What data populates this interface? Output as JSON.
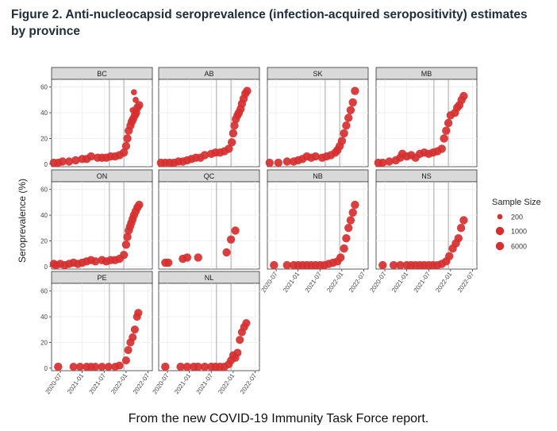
{
  "figure_title": "Figure 2. Anti-nucleocapsid seroprevalence (infection-acquired seropositivity) estimates by province",
  "caption": "From the new COVID-19 Immunity Task Force report.",
  "chart_data": {
    "type": "scatter",
    "ylabel": "Seroprevalence (%)",
    "xlabel": "",
    "ylim": [
      -2,
      66
    ],
    "yticks": [
      0,
      20,
      40,
      60
    ],
    "xlim": [
      2020.3,
      2022.6
    ],
    "xticks": [
      {
        "value": 2020.5,
        "label": "2020-07"
      },
      {
        "value": 2021.0,
        "label": "2021-01"
      },
      {
        "value": 2021.5,
        "label": "2021-07"
      },
      {
        "value": 2022.0,
        "label": "2022-01"
      },
      {
        "value": 2022.5,
        "label": "2022-07"
      }
    ],
    "vlines": [
      2021.62,
      2021.95
    ],
    "point_color": "#d62f2f",
    "grid": true,
    "legend": {
      "title": "Sample Size",
      "position": "right",
      "entries": [
        {
          "label": "200",
          "size": 200
        },
        {
          "label": "1000",
          "size": 1000
        },
        {
          "label": "6000",
          "size": 6000
        }
      ]
    },
    "panels": [
      {
        "name": "BC",
        "points": [
          [
            2020.35,
            1,
            3000
          ],
          [
            2020.45,
            1,
            6000
          ],
          [
            2020.55,
            2,
            2000
          ],
          [
            2020.7,
            2,
            1500
          ],
          [
            2020.85,
            3,
            1500
          ],
          [
            2021.0,
            4,
            1500
          ],
          [
            2021.1,
            4,
            1500
          ],
          [
            2021.2,
            6,
            2000
          ],
          [
            2021.35,
            5,
            1500
          ],
          [
            2021.45,
            5,
            1500
          ],
          [
            2021.55,
            5,
            1500
          ],
          [
            2021.65,
            6,
            1500
          ],
          [
            2021.75,
            6,
            1500
          ],
          [
            2021.85,
            7,
            1500
          ],
          [
            2021.95,
            9,
            2000
          ],
          [
            2022.0,
            14,
            1500
          ],
          [
            2022.03,
            20,
            1500
          ],
          [
            2022.06,
            26,
            1500
          ],
          [
            2022.1,
            30,
            1500
          ],
          [
            2022.13,
            33,
            1500
          ],
          [
            2022.16,
            35,
            1500
          ],
          [
            2022.2,
            38,
            1500
          ],
          [
            2022.23,
            40,
            1500
          ],
          [
            2022.26,
            44,
            1500
          ],
          [
            2022.3,
            46,
            1500
          ],
          [
            2022.18,
            56,
            300
          ],
          [
            2022.22,
            50,
            300
          ],
          [
            2022.15,
            42,
            300
          ]
        ]
      },
      {
        "name": "AB",
        "points": [
          [
            2020.35,
            1,
            6000
          ],
          [
            2020.45,
            1,
            3000
          ],
          [
            2020.55,
            1,
            2500
          ],
          [
            2020.65,
            1,
            2500
          ],
          [
            2020.75,
            2,
            2500
          ],
          [
            2020.85,
            2,
            2500
          ],
          [
            2020.95,
            3,
            2000
          ],
          [
            2021.05,
            4,
            2000
          ],
          [
            2021.15,
            5,
            2000
          ],
          [
            2021.25,
            5,
            2000
          ],
          [
            2021.35,
            7,
            2000
          ],
          [
            2021.5,
            8,
            2000
          ],
          [
            2021.6,
            9,
            2000
          ],
          [
            2021.7,
            9,
            2000
          ],
          [
            2021.8,
            10,
            2000
          ],
          [
            2021.9,
            12,
            2000
          ],
          [
            2021.97,
            17,
            2000
          ],
          [
            2022.0,
            24,
            1500
          ],
          [
            2022.03,
            30,
            1500
          ],
          [
            2022.06,
            35,
            1500
          ],
          [
            2022.1,
            38,
            1500
          ],
          [
            2022.13,
            40,
            1500
          ],
          [
            2022.17,
            43,
            1500
          ],
          [
            2022.2,
            47,
            1500
          ],
          [
            2022.24,
            51,
            1500
          ],
          [
            2022.28,
            55,
            1500
          ],
          [
            2022.32,
            57,
            1500
          ]
        ]
      },
      {
        "name": "SK",
        "points": [
          [
            2020.35,
            1,
            700
          ],
          [
            2020.55,
            1,
            700
          ],
          [
            2020.75,
            2,
            900
          ],
          [
            2020.9,
            2,
            700
          ],
          [
            2021.0,
            3,
            900
          ],
          [
            2021.1,
            4,
            900
          ],
          [
            2021.2,
            6,
            1000
          ],
          [
            2021.3,
            5,
            900
          ],
          [
            2021.4,
            6,
            1000
          ],
          [
            2021.55,
            5,
            900
          ],
          [
            2021.65,
            6,
            900
          ],
          [
            2021.75,
            7,
            1000
          ],
          [
            2021.85,
            9,
            900
          ],
          [
            2021.9,
            11,
            900
          ],
          [
            2021.95,
            14,
            900
          ],
          [
            2022.0,
            18,
            900
          ],
          [
            2022.05,
            24,
            900
          ],
          [
            2022.1,
            30,
            900
          ],
          [
            2022.15,
            36,
            900
          ],
          [
            2022.2,
            42,
            900
          ],
          [
            2022.25,
            48,
            900
          ],
          [
            2022.3,
            57,
            700
          ]
        ]
      },
      {
        "name": "MB",
        "points": [
          [
            2020.35,
            1,
            1000
          ],
          [
            2020.45,
            1,
            1000
          ],
          [
            2020.6,
            2,
            1000
          ],
          [
            2020.75,
            3,
            900
          ],
          [
            2020.85,
            5,
            900
          ],
          [
            2020.9,
            8,
            700
          ],
          [
            2021.0,
            6,
            900
          ],
          [
            2021.1,
            7,
            900
          ],
          [
            2021.2,
            5,
            900
          ],
          [
            2021.3,
            8,
            700
          ],
          [
            2021.4,
            9,
            900
          ],
          [
            2021.5,
            8,
            700
          ],
          [
            2021.6,
            9,
            900
          ],
          [
            2021.7,
            10,
            900
          ],
          [
            2021.8,
            12,
            900
          ],
          [
            2021.85,
            20,
            700
          ],
          [
            2021.9,
            26,
            700
          ],
          [
            2021.95,
            32,
            900
          ],
          [
            2022.0,
            38,
            900
          ],
          [
            2022.1,
            40,
            900
          ],
          [
            2022.15,
            44,
            900
          ],
          [
            2022.2,
            46,
            900
          ],
          [
            2022.25,
            50,
            900
          ],
          [
            2022.3,
            53,
            900
          ]
        ]
      },
      {
        "name": "ON",
        "points": [
          [
            2020.35,
            2,
            6000
          ],
          [
            2020.4,
            1,
            3000
          ],
          [
            2020.5,
            2,
            6000
          ],
          [
            2020.6,
            1,
            3000
          ],
          [
            2020.7,
            2,
            2500
          ],
          [
            2020.8,
            3,
            2500
          ],
          [
            2020.9,
            2,
            2500
          ],
          [
            2021.0,
            3,
            2500
          ],
          [
            2021.1,
            4,
            2500
          ],
          [
            2021.2,
            5,
            2500
          ],
          [
            2021.3,
            4,
            2500
          ],
          [
            2021.45,
            5,
            2500
          ],
          [
            2021.55,
            4,
            2500
          ],
          [
            2021.65,
            5,
            2500
          ],
          [
            2021.75,
            5,
            2500
          ],
          [
            2021.85,
            6,
            2500
          ],
          [
            2021.95,
            9,
            2500
          ],
          [
            2022.0,
            17,
            2000
          ],
          [
            2022.03,
            23,
            2000
          ],
          [
            2022.06,
            28,
            2000
          ],
          [
            2022.09,
            31,
            2000
          ],
          [
            2022.12,
            34,
            2000
          ],
          [
            2022.15,
            37,
            2000
          ],
          [
            2022.18,
            40,
            2000
          ],
          [
            2022.22,
            43,
            2000
          ],
          [
            2022.26,
            46,
            2000
          ],
          [
            2022.3,
            48,
            2000
          ]
        ]
      },
      {
        "name": "QC",
        "points": [
          [
            2020.45,
            3,
            3500
          ],
          [
            2020.52,
            3,
            3500
          ],
          [
            2020.85,
            6,
            700
          ],
          [
            2020.95,
            7,
            1000
          ],
          [
            2021.2,
            7,
            1000
          ],
          [
            2021.85,
            11,
            700
          ],
          [
            2021.95,
            21,
            700
          ],
          [
            2022.05,
            28,
            700
          ]
        ]
      },
      {
        "name": "NB",
        "points": [
          [
            2020.45,
            1,
            1000
          ],
          [
            2020.75,
            1,
            900
          ],
          [
            2020.9,
            1,
            800
          ],
          [
            2021.0,
            1,
            800
          ],
          [
            2021.1,
            1,
            800
          ],
          [
            2021.2,
            1,
            800
          ],
          [
            2021.3,
            1,
            800
          ],
          [
            2021.4,
            1,
            800
          ],
          [
            2021.5,
            1,
            800
          ],
          [
            2021.6,
            1,
            800
          ],
          [
            2021.7,
            2,
            800
          ],
          [
            2021.8,
            3,
            800
          ],
          [
            2021.9,
            4,
            800
          ],
          [
            2021.97,
            7,
            800
          ],
          [
            2022.05,
            14,
            800
          ],
          [
            2022.1,
            22,
            800
          ],
          [
            2022.15,
            30,
            800
          ],
          [
            2022.2,
            36,
            800
          ],
          [
            2022.25,
            42,
            800
          ],
          [
            2022.3,
            48,
            700
          ]
        ]
      },
      {
        "name": "NS",
        "points": [
          [
            2020.45,
            1,
            1000
          ],
          [
            2020.7,
            1,
            900
          ],
          [
            2020.85,
            1,
            800
          ],
          [
            2021.0,
            1,
            800
          ],
          [
            2021.1,
            1,
            800
          ],
          [
            2021.2,
            1,
            800
          ],
          [
            2021.3,
            1,
            800
          ],
          [
            2021.4,
            1,
            800
          ],
          [
            2021.5,
            1,
            800
          ],
          [
            2021.6,
            1,
            800
          ],
          [
            2021.7,
            1,
            800
          ],
          [
            2021.8,
            2,
            800
          ],
          [
            2021.9,
            4,
            800
          ],
          [
            2021.97,
            8,
            800
          ],
          [
            2022.05,
            14,
            800
          ],
          [
            2022.12,
            18,
            800
          ],
          [
            2022.18,
            22,
            800
          ],
          [
            2022.24,
            30,
            800
          ],
          [
            2022.3,
            36,
            800
          ]
        ]
      },
      {
        "name": "PE",
        "points": [
          [
            2020.45,
            1,
            700
          ],
          [
            2020.8,
            1,
            600
          ],
          [
            2020.95,
            1,
            600
          ],
          [
            2021.1,
            1,
            600
          ],
          [
            2021.2,
            1,
            600
          ],
          [
            2021.3,
            1,
            600
          ],
          [
            2021.45,
            1,
            600
          ],
          [
            2021.6,
            1,
            600
          ],
          [
            2021.75,
            1,
            600
          ],
          [
            2021.85,
            2,
            600
          ],
          [
            2022.0,
            6,
            600
          ],
          [
            2022.05,
            14,
            600
          ],
          [
            2022.1,
            20,
            600
          ],
          [
            2022.15,
            24,
            600
          ],
          [
            2022.2,
            30,
            600
          ],
          [
            2022.25,
            40,
            600
          ],
          [
            2022.28,
            43,
            600
          ]
        ]
      },
      {
        "name": "NL",
        "points": [
          [
            2020.45,
            1,
            900
          ],
          [
            2020.8,
            1,
            700
          ],
          [
            2020.95,
            1,
            700
          ],
          [
            2021.1,
            1,
            700
          ],
          [
            2021.2,
            1,
            700
          ],
          [
            2021.35,
            1,
            700
          ],
          [
            2021.5,
            1,
            700
          ],
          [
            2021.6,
            1,
            700
          ],
          [
            2021.7,
            1,
            700
          ],
          [
            2021.8,
            1,
            700
          ],
          [
            2021.9,
            3,
            600
          ],
          [
            2021.95,
            6,
            600
          ],
          [
            2022.0,
            10,
            600
          ],
          [
            2022.05,
            8,
            600
          ],
          [
            2022.1,
            12,
            600
          ],
          [
            2022.15,
            22,
            600
          ],
          [
            2022.2,
            28,
            600
          ],
          [
            2022.25,
            32,
            600
          ],
          [
            2022.3,
            35,
            600
          ]
        ]
      }
    ]
  }
}
